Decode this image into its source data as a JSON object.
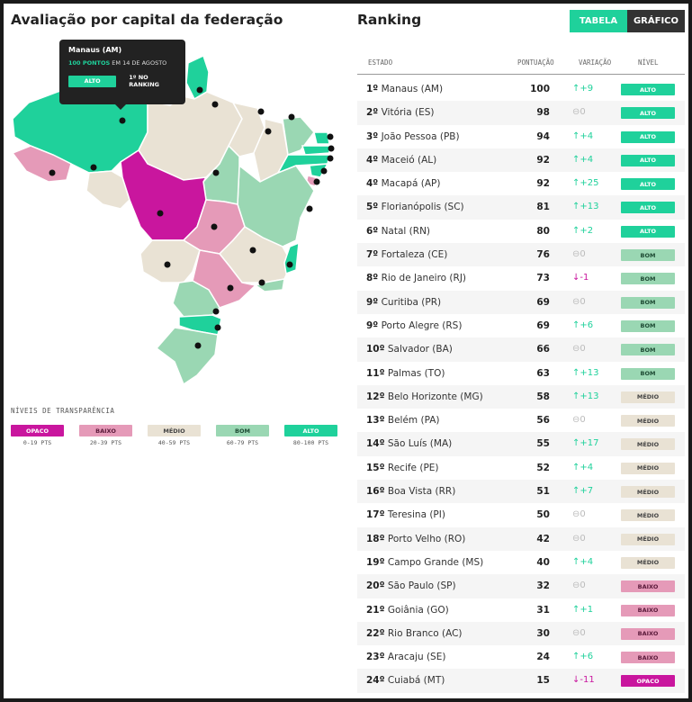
{
  "left": {
    "title": "Avaliação por capital da federação",
    "tooltip": {
      "city": "Manaus (AM)",
      "points": "100 PONTOS",
      "date": "EM 14 DE AGOSTO",
      "level": "ALTO",
      "rank": "1º NO RANKING"
    },
    "legend_title": "NÍVEIS DE TRANSPARÊNCIA",
    "legend": [
      {
        "label": "OPACO",
        "range": "0-19 PTS",
        "bg": "#c9169e",
        "fg": "#ffffff"
      },
      {
        "label": "BAIXO",
        "range": "20-39 PTS",
        "bg": "#e59ab8",
        "fg": "#5a1a3a"
      },
      {
        "label": "MÉDIO",
        "range": "40-59 PTS",
        "bg": "#e9e2d4",
        "fg": "#444444"
      },
      {
        "label": "BOM",
        "range": "60-79 PTS",
        "bg": "#9ad7b3",
        "fg": "#1d4a33"
      },
      {
        "label": "ALTO",
        "range": "80-100 PTS",
        "bg": "#1fd19b",
        "fg": "#ffffff"
      }
    ]
  },
  "right": {
    "title": "Ranking",
    "toggle": {
      "table": "TABELA",
      "chart": "GRÁFICO"
    },
    "headers": {
      "state": "ESTADO",
      "score": "PONTUAÇÃO",
      "change": "VARIAÇÃO",
      "level": "NÍVEL"
    },
    "rows": [
      {
        "rank": "1º",
        "city": "Manaus (AM)",
        "score": "100",
        "change": "↑+9",
        "dir": "up",
        "level": "ALTO"
      },
      {
        "rank": "2º",
        "city": "Vitória (ES)",
        "score": "98",
        "change": "⊖0",
        "dir": "eq",
        "level": "ALTO"
      },
      {
        "rank": "3º",
        "city": "João Pessoa (PB)",
        "score": "94",
        "change": "↑+4",
        "dir": "up",
        "level": "ALTO"
      },
      {
        "rank": "4º",
        "city": "Maceió (AL)",
        "score": "92",
        "change": "↑+4",
        "dir": "up",
        "level": "ALTO"
      },
      {
        "rank": "4º",
        "city": "Macapá (AP)",
        "score": "92",
        "change": "↑+25",
        "dir": "up",
        "level": "ALTO"
      },
      {
        "rank": "5º",
        "city": "Florianópolis (SC)",
        "score": "81",
        "change": "↑+13",
        "dir": "up",
        "level": "ALTO"
      },
      {
        "rank": "6º",
        "city": "Natal (RN)",
        "score": "80",
        "change": "↑+2",
        "dir": "up",
        "level": "ALTO"
      },
      {
        "rank": "7º",
        "city": "Fortaleza (CE)",
        "score": "76",
        "change": "⊖0",
        "dir": "eq",
        "level": "BOM"
      },
      {
        "rank": "8º",
        "city": "Rio de Janeiro (RJ)",
        "score": "73",
        "change": "↓-1",
        "dir": "down",
        "level": "BOM"
      },
      {
        "rank": "9º",
        "city": "Curitiba (PR)",
        "score": "69",
        "change": "⊖0",
        "dir": "eq",
        "level": "BOM"
      },
      {
        "rank": "9º",
        "city": "Porto Alegre (RS)",
        "score": "69",
        "change": "↑+6",
        "dir": "up",
        "level": "BOM"
      },
      {
        "rank": "10º",
        "city": "Salvador (BA)",
        "score": "66",
        "change": "⊖0",
        "dir": "eq",
        "level": "BOM"
      },
      {
        "rank": "11º",
        "city": "Palmas (TO)",
        "score": "63",
        "change": "↑+13",
        "dir": "up",
        "level": "BOM"
      },
      {
        "rank": "12º",
        "city": "Belo Horizonte (MG)",
        "score": "58",
        "change": "↑+13",
        "dir": "up",
        "level": "MÉDIO"
      },
      {
        "rank": "13º",
        "city": "Belém (PA)",
        "score": "56",
        "change": "⊖0",
        "dir": "eq",
        "level": "MÉDIO"
      },
      {
        "rank": "14º",
        "city": "São Luís (MA)",
        "score": "55",
        "change": "↑+17",
        "dir": "up",
        "level": "MÉDIO"
      },
      {
        "rank": "15º",
        "city": "Recife (PE)",
        "score": "52",
        "change": "↑+4",
        "dir": "up",
        "level": "MÉDIO"
      },
      {
        "rank": "16º",
        "city": "Boa Vista (RR)",
        "score": "51",
        "change": "↑+7",
        "dir": "up",
        "level": "MÉDIO"
      },
      {
        "rank": "17º",
        "city": "Teresina (PI)",
        "score": "50",
        "change": "⊖0",
        "dir": "eq",
        "level": "MÉDIO"
      },
      {
        "rank": "18º",
        "city": "Porto Velho (RO)",
        "score": "42",
        "change": "⊖0",
        "dir": "eq",
        "level": "MÉDIO"
      },
      {
        "rank": "19º",
        "city": "Campo Grande (MS)",
        "score": "40",
        "change": "↑+4",
        "dir": "up",
        "level": "MÉDIO"
      },
      {
        "rank": "20º",
        "city": "São Paulo (SP)",
        "score": "32",
        "change": "⊖0",
        "dir": "eq",
        "level": "BAIXO"
      },
      {
        "rank": "21º",
        "city": "Goiânia (GO)",
        "score": "31",
        "change": "↑+1",
        "dir": "up",
        "level": "BAIXO"
      },
      {
        "rank": "22º",
        "city": "Rio Branco (AC)",
        "score": "30",
        "change": "⊖0",
        "dir": "eq",
        "level": "BAIXO"
      },
      {
        "rank": "23º",
        "city": "Aracaju (SE)",
        "score": "24",
        "change": "↑+6",
        "dir": "up",
        "level": "BAIXO"
      },
      {
        "rank": "24º",
        "city": "Cuiabá (MT)",
        "score": "15",
        "change": "↓-11",
        "dir": "down",
        "level": "OPACO"
      }
    ]
  },
  "colors": {
    "OPACO": {
      "bg": "#c9169e",
      "fg": "#ffffff"
    },
    "BAIXO": {
      "bg": "#e59ab8",
      "fg": "#5a1a3a"
    },
    "MÉDIO": {
      "bg": "#e9e2d4",
      "fg": "#444444"
    },
    "BOM": {
      "bg": "#9ad7b3",
      "fg": "#1d4a33"
    },
    "ALTO": {
      "bg": "#1fd19b",
      "fg": "#ffffff"
    }
  }
}
